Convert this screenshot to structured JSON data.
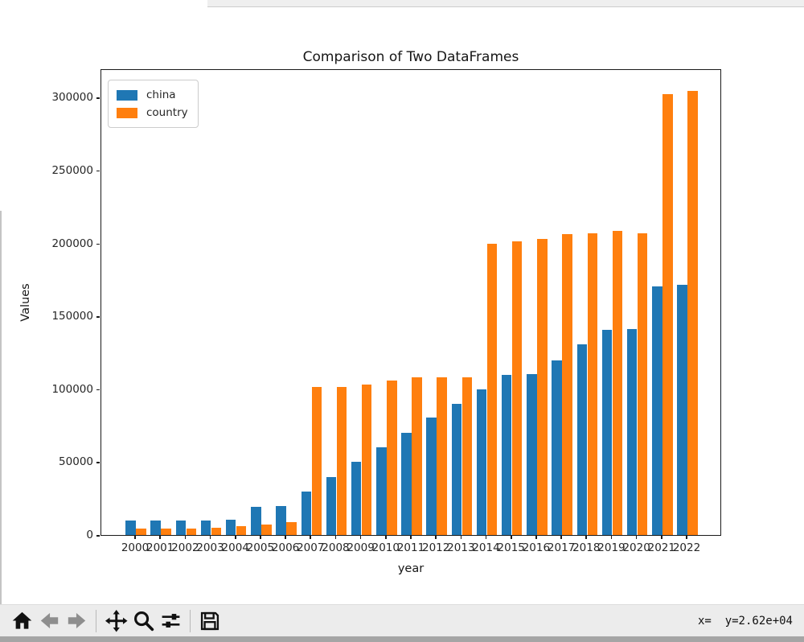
{
  "chart_data": {
    "type": "bar",
    "title": "Comparison of Two DataFrames",
    "xlabel": "year",
    "ylabel": "Values",
    "categories": [
      "2000",
      "2001",
      "2002",
      "2003",
      "2004",
      "2005",
      "2006",
      "2007",
      "2008",
      "2009",
      "2010",
      "2011",
      "2012",
      "2013",
      "2014",
      "2015",
      "2016",
      "2017",
      "2018",
      "2019",
      "2020",
      "2021",
      "2022"
    ],
    "series": [
      {
        "name": "china",
        "color": "#1f77b4",
        "values": [
          9700,
          9800,
          9900,
          10000,
          10500,
          19200,
          20000,
          30000,
          40000,
          50000,
          60000,
          70000,
          80300,
          90000,
          100000,
          109700,
          110400,
          120000,
          131000,
          140700,
          141300,
          170600,
          171600
        ]
      },
      {
        "name": "country",
        "color": "#ff7f0e",
        "values": [
          4400,
          4400,
          4400,
          5100,
          6100,
          7200,
          9000,
          101300,
          101500,
          103000,
          106100,
          108200,
          108200,
          108200,
          200000,
          201300,
          203100,
          206400,
          207100,
          208600,
          206800,
          302500,
          304400
        ]
      }
    ],
    "ylim": [
      0,
      320000
    ],
    "yticks": [
      0,
      50000,
      100000,
      150000,
      200000,
      250000,
      300000
    ],
    "legend_position": "upper left",
    "grid": false
  },
  "toolbar": {
    "icons": [
      "home-icon",
      "back-icon",
      "forward-icon",
      "pan-icon",
      "zoom-icon",
      "configure-subplots-icon",
      "save-icon"
    ],
    "status": "x=  y=2.62e+04"
  }
}
